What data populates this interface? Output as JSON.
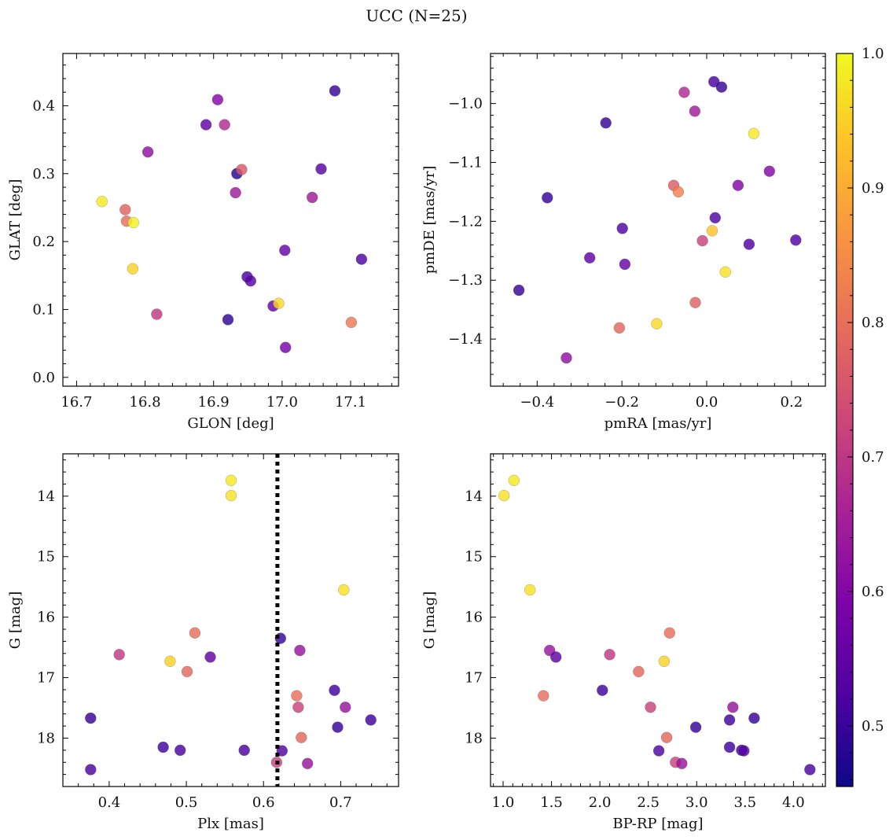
{
  "title": "UCC (N=25)",
  "colorbar": {
    "range": [
      0.455,
      1.0
    ],
    "ticks": [
      0.5,
      0.6,
      0.7,
      0.8,
      0.9,
      1.0
    ],
    "tick_labels": [
      "0.5",
      "0.6",
      "0.7",
      "0.8",
      "0.9",
      "1.0"
    ],
    "colormap": "plasma"
  },
  "chart_data": [
    {
      "type": "scatter",
      "xlabel": "GLON [deg]",
      "ylabel": "GLAT [deg]",
      "xlim": [
        16.68,
        17.17
      ],
      "ylim": [
        -0.013,
        0.477
      ],
      "invert_y": false,
      "xticks": [
        16.7,
        16.8,
        16.9,
        17.0,
        17.1
      ],
      "xtick_labels": [
        "16.7",
        "16.8",
        "16.9",
        "17.0",
        "17.1"
      ],
      "yticks": [
        0.0,
        0.1,
        0.2,
        0.3,
        0.4
      ],
      "ytick_labels": [
        "0.0",
        "0.1",
        "0.2",
        "0.3",
        "0.4"
      ],
      "points": [
        {
          "x": 16.737,
          "y": 0.259,
          "c": 0.98
        },
        {
          "x": 16.771,
          "y": 0.247,
          "c": 0.78
        },
        {
          "x": 16.773,
          "y": 0.23,
          "c": 0.8
        },
        {
          "x": 16.783,
          "y": 0.228,
          "c": 0.99
        },
        {
          "x": 16.782,
          "y": 0.16,
          "c": 0.95
        },
        {
          "x": 16.804,
          "y": 0.332,
          "c": 0.62
        },
        {
          "x": 16.817,
          "y": 0.093,
          "c": 0.7
        },
        {
          "x": 16.889,
          "y": 0.372,
          "c": 0.55
        },
        {
          "x": 16.906,
          "y": 0.409,
          "c": 0.6
        },
        {
          "x": 16.916,
          "y": 0.372,
          "c": 0.67
        },
        {
          "x": 16.921,
          "y": 0.085,
          "c": 0.49
        },
        {
          "x": 16.932,
          "y": 0.272,
          "c": 0.64
        },
        {
          "x": 16.934,
          "y": 0.3,
          "c": 0.48
        },
        {
          "x": 16.941,
          "y": 0.306,
          "c": 0.76
        },
        {
          "x": 16.949,
          "y": 0.148,
          "c": 0.52
        },
        {
          "x": 16.954,
          "y": 0.142,
          "c": 0.54
        },
        {
          "x": 16.987,
          "y": 0.105,
          "c": 0.56
        },
        {
          "x": 16.995,
          "y": 0.109,
          "c": 0.96
        },
        {
          "x": 17.004,
          "y": 0.187,
          "c": 0.56
        },
        {
          "x": 17.005,
          "y": 0.044,
          "c": 0.58
        },
        {
          "x": 17.044,
          "y": 0.265,
          "c": 0.64
        },
        {
          "x": 17.057,
          "y": 0.307,
          "c": 0.54
        },
        {
          "x": 17.077,
          "y": 0.422,
          "c": 0.5
        },
        {
          "x": 17.101,
          "y": 0.081,
          "c": 0.82
        },
        {
          "x": 17.116,
          "y": 0.174,
          "c": 0.53
        }
      ]
    },
    {
      "type": "scatter",
      "xlabel": "pmRA [mas/yr]",
      "ylabel": "pmDE [mas/yr]",
      "xlim": [
        -0.51,
        0.28
      ],
      "ylim": [
        -1.48,
        -0.915
      ],
      "invert_y": false,
      "xticks": [
        -0.4,
        -0.2,
        0.0,
        0.2
      ],
      "xtick_labels": [
        "−0.4",
        "−0.2",
        "0.0",
        "0.2"
      ],
      "yticks": [
        -1.4,
        -1.3,
        -1.2,
        -1.1,
        -1.0
      ],
      "ytick_labels": [
        "−1.4",
        "−1.3",
        "−1.2",
        "−1.1",
        "−1.0"
      ],
      "points": [
        {
          "x": -0.443,
          "y": -1.317,
          "c": 0.5
        },
        {
          "x": -0.376,
          "y": -1.16,
          "c": 0.5
        },
        {
          "x": -0.331,
          "y": -1.432,
          "c": 0.62
        },
        {
          "x": -0.276,
          "y": -1.262,
          "c": 0.55
        },
        {
          "x": -0.238,
          "y": -1.033,
          "c": 0.5
        },
        {
          "x": -0.206,
          "y": -1.381,
          "c": 0.79
        },
        {
          "x": -0.199,
          "y": -1.212,
          "c": 0.53
        },
        {
          "x": -0.193,
          "y": -1.273,
          "c": 0.56
        },
        {
          "x": -0.118,
          "y": -1.374,
          "c": 0.96
        },
        {
          "x": -0.078,
          "y": -1.139,
          "c": 0.77
        },
        {
          "x": -0.067,
          "y": -1.15,
          "c": 0.83
        },
        {
          "x": -0.053,
          "y": -0.981,
          "c": 0.67
        },
        {
          "x": -0.028,
          "y": -1.013,
          "c": 0.64
        },
        {
          "x": -0.027,
          "y": -1.338,
          "c": 0.78
        },
        {
          "x": -0.01,
          "y": -1.233,
          "c": 0.72
        },
        {
          "x": 0.013,
          "y": -1.216,
          "c": 0.93
        },
        {
          "x": 0.017,
          "y": -0.963,
          "c": 0.52
        },
        {
          "x": 0.02,
          "y": -1.194,
          "c": 0.53
        },
        {
          "x": 0.035,
          "y": -0.972,
          "c": 0.5
        },
        {
          "x": 0.044,
          "y": -1.286,
          "c": 0.97
        },
        {
          "x": 0.074,
          "y": -1.139,
          "c": 0.6
        },
        {
          "x": 0.1,
          "y": -1.239,
          "c": 0.53
        },
        {
          "x": 0.111,
          "y": -1.051,
          "c": 0.98
        },
        {
          "x": 0.148,
          "y": -1.115,
          "c": 0.6
        },
        {
          "x": 0.21,
          "y": -1.232,
          "c": 0.53
        }
      ]
    },
    {
      "type": "scatter",
      "xlabel": "Plx [mas]",
      "ylabel": "G [mag]",
      "xlim": [
        0.34,
        0.775
      ],
      "ylim": [
        13.3,
        18.8
      ],
      "invert_y": true,
      "vline": {
        "x": 0.618,
        "style": "dotted"
      },
      "xticks": [
        0.4,
        0.5,
        0.6,
        0.7
      ],
      "xtick_labels": [
        "0.4",
        "0.5",
        "0.6",
        "0.7"
      ],
      "yticks": [
        14,
        15,
        16,
        17,
        18
      ],
      "ytick_labels": [
        "14",
        "15",
        "16",
        "17",
        "18"
      ],
      "points": [
        {
          "x": 0.376,
          "y": 17.67,
          "c": 0.5
        },
        {
          "x": 0.376,
          "y": 18.52,
          "c": 0.52
        },
        {
          "x": 0.413,
          "y": 16.62,
          "c": 0.7
        },
        {
          "x": 0.47,
          "y": 18.15,
          "c": 0.51
        },
        {
          "x": 0.479,
          "y": 16.73,
          "c": 0.95
        },
        {
          "x": 0.492,
          "y": 18.2,
          "c": 0.52
        },
        {
          "x": 0.501,
          "y": 16.9,
          "c": 0.79
        },
        {
          "x": 0.511,
          "y": 16.26,
          "c": 0.8
        },
        {
          "x": 0.531,
          "y": 16.66,
          "c": 0.55
        },
        {
          "x": 0.558,
          "y": 13.74,
          "c": 0.98
        },
        {
          "x": 0.558,
          "y": 13.99,
          "c": 0.97
        },
        {
          "x": 0.575,
          "y": 18.2,
          "c": 0.52
        },
        {
          "x": 0.617,
          "y": 18.4,
          "c": 0.72
        },
        {
          "x": 0.622,
          "y": 16.35,
          "c": 0.5
        },
        {
          "x": 0.624,
          "y": 18.21,
          "c": 0.53
        },
        {
          "x": 0.643,
          "y": 17.3,
          "c": 0.8
        },
        {
          "x": 0.645,
          "y": 17.49,
          "c": 0.72
        },
        {
          "x": 0.647,
          "y": 16.55,
          "c": 0.63
        },
        {
          "x": 0.649,
          "y": 17.99,
          "c": 0.79
        },
        {
          "x": 0.657,
          "y": 18.42,
          "c": 0.63
        },
        {
          "x": 0.692,
          "y": 17.21,
          "c": 0.51
        },
        {
          "x": 0.696,
          "y": 17.82,
          "c": 0.5
        },
        {
          "x": 0.704,
          "y": 15.55,
          "c": 0.97
        },
        {
          "x": 0.706,
          "y": 17.49,
          "c": 0.63
        },
        {
          "x": 0.739,
          "y": 17.7,
          "c": 0.51
        }
      ]
    },
    {
      "type": "scatter",
      "xlabel": "BP-RP [mag]",
      "ylabel": "G [mag]",
      "xlim": [
        0.87,
        4.33
      ],
      "ylim": [
        13.3,
        18.8
      ],
      "invert_y": true,
      "xticks": [
        1.0,
        1.5,
        2.0,
        2.5,
        3.0,
        3.5,
        4.0
      ],
      "xtick_labels": [
        "1.0",
        "1.5",
        "2.0",
        "2.5",
        "3.0",
        "3.5",
        "4.0"
      ],
      "yticks": [
        14,
        15,
        16,
        17,
        18
      ],
      "ytick_labels": [
        "14",
        "15",
        "16",
        "17",
        "18"
      ],
      "points": [
        {
          "x": 1.01,
          "y": 13.99,
          "c": 0.97
        },
        {
          "x": 1.112,
          "y": 13.74,
          "c": 0.98
        },
        {
          "x": 1.278,
          "y": 15.55,
          "c": 0.97
        },
        {
          "x": 1.417,
          "y": 17.3,
          "c": 0.8
        },
        {
          "x": 1.481,
          "y": 16.55,
          "c": 0.63
        },
        {
          "x": 1.546,
          "y": 16.66,
          "c": 0.55
        },
        {
          "x": 2.026,
          "y": 17.21,
          "c": 0.51
        },
        {
          "x": 2.101,
          "y": 16.62,
          "c": 0.7
        },
        {
          "x": 2.4,
          "y": 16.9,
          "c": 0.79
        },
        {
          "x": 2.523,
          "y": 17.49,
          "c": 0.72
        },
        {
          "x": 2.609,
          "y": 18.21,
          "c": 0.53
        },
        {
          "x": 2.664,
          "y": 16.73,
          "c": 0.95
        },
        {
          "x": 2.69,
          "y": 17.99,
          "c": 0.79
        },
        {
          "x": 2.72,
          "y": 16.26,
          "c": 0.8
        },
        {
          "x": 2.781,
          "y": 18.4,
          "c": 0.72
        },
        {
          "x": 2.846,
          "y": 18.42,
          "c": 0.63
        },
        {
          "x": 2.991,
          "y": 17.82,
          "c": 0.5
        },
        {
          "x": 3.34,
          "y": 17.7,
          "c": 0.51
        },
        {
          "x": 3.34,
          "y": 18.15,
          "c": 0.51
        },
        {
          "x": 3.374,
          "y": 17.49,
          "c": 0.63
        },
        {
          "x": 3.464,
          "y": 18.2,
          "c": 0.52
        },
        {
          "x": 3.488,
          "y": 18.21,
          "c": 0.53
        },
        {
          "x": 3.594,
          "y": 17.67,
          "c": 0.5
        },
        {
          "x": 4.17,
          "y": 18.52,
          "c": 0.52
        }
      ]
    }
  ]
}
